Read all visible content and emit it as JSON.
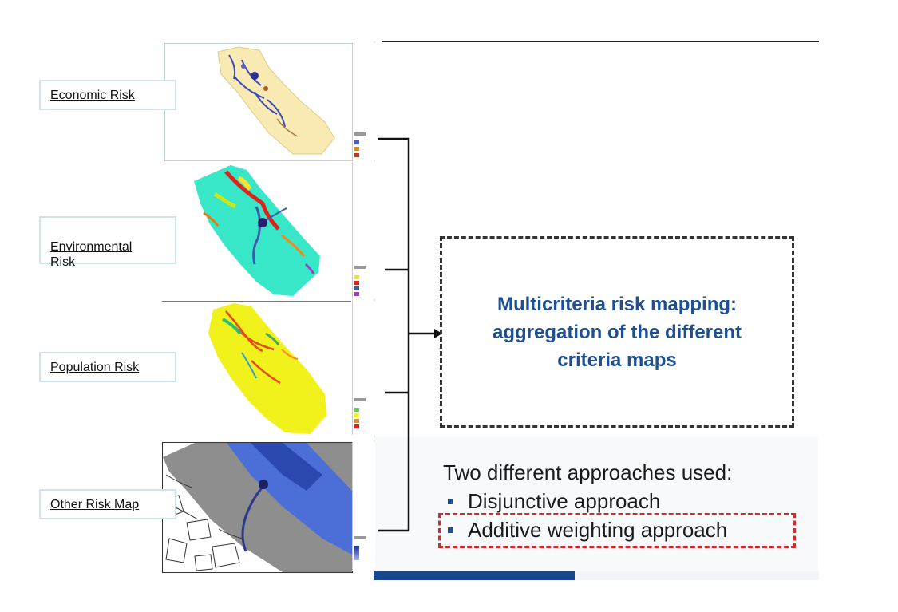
{
  "labels": {
    "economic": "Economic Risk",
    "environmental": "Environmental\nRisk",
    "population": "Population Risk",
    "other": "Other Risk Map"
  },
  "center_box": {
    "title": "Multicriteria risk mapping:\naggregation of the different\ncriteria maps"
  },
  "approaches": {
    "heading": "Two different approaches used:",
    "items": [
      "Disjunctive approach",
      "Additive weighting approach"
    ],
    "highlighted_item": "Additive weighting approach"
  },
  "colors": {
    "title_blue": "#1d4f91",
    "bullet_blue": "#1d4f91",
    "highlight_red": "#d62a2a",
    "label_border": "#cfe3ea",
    "economic_base": "#f9e9b3",
    "environmental_base": "#38e6c8",
    "population_base": "#f1f21b",
    "other_base": "#8e8e8e"
  }
}
